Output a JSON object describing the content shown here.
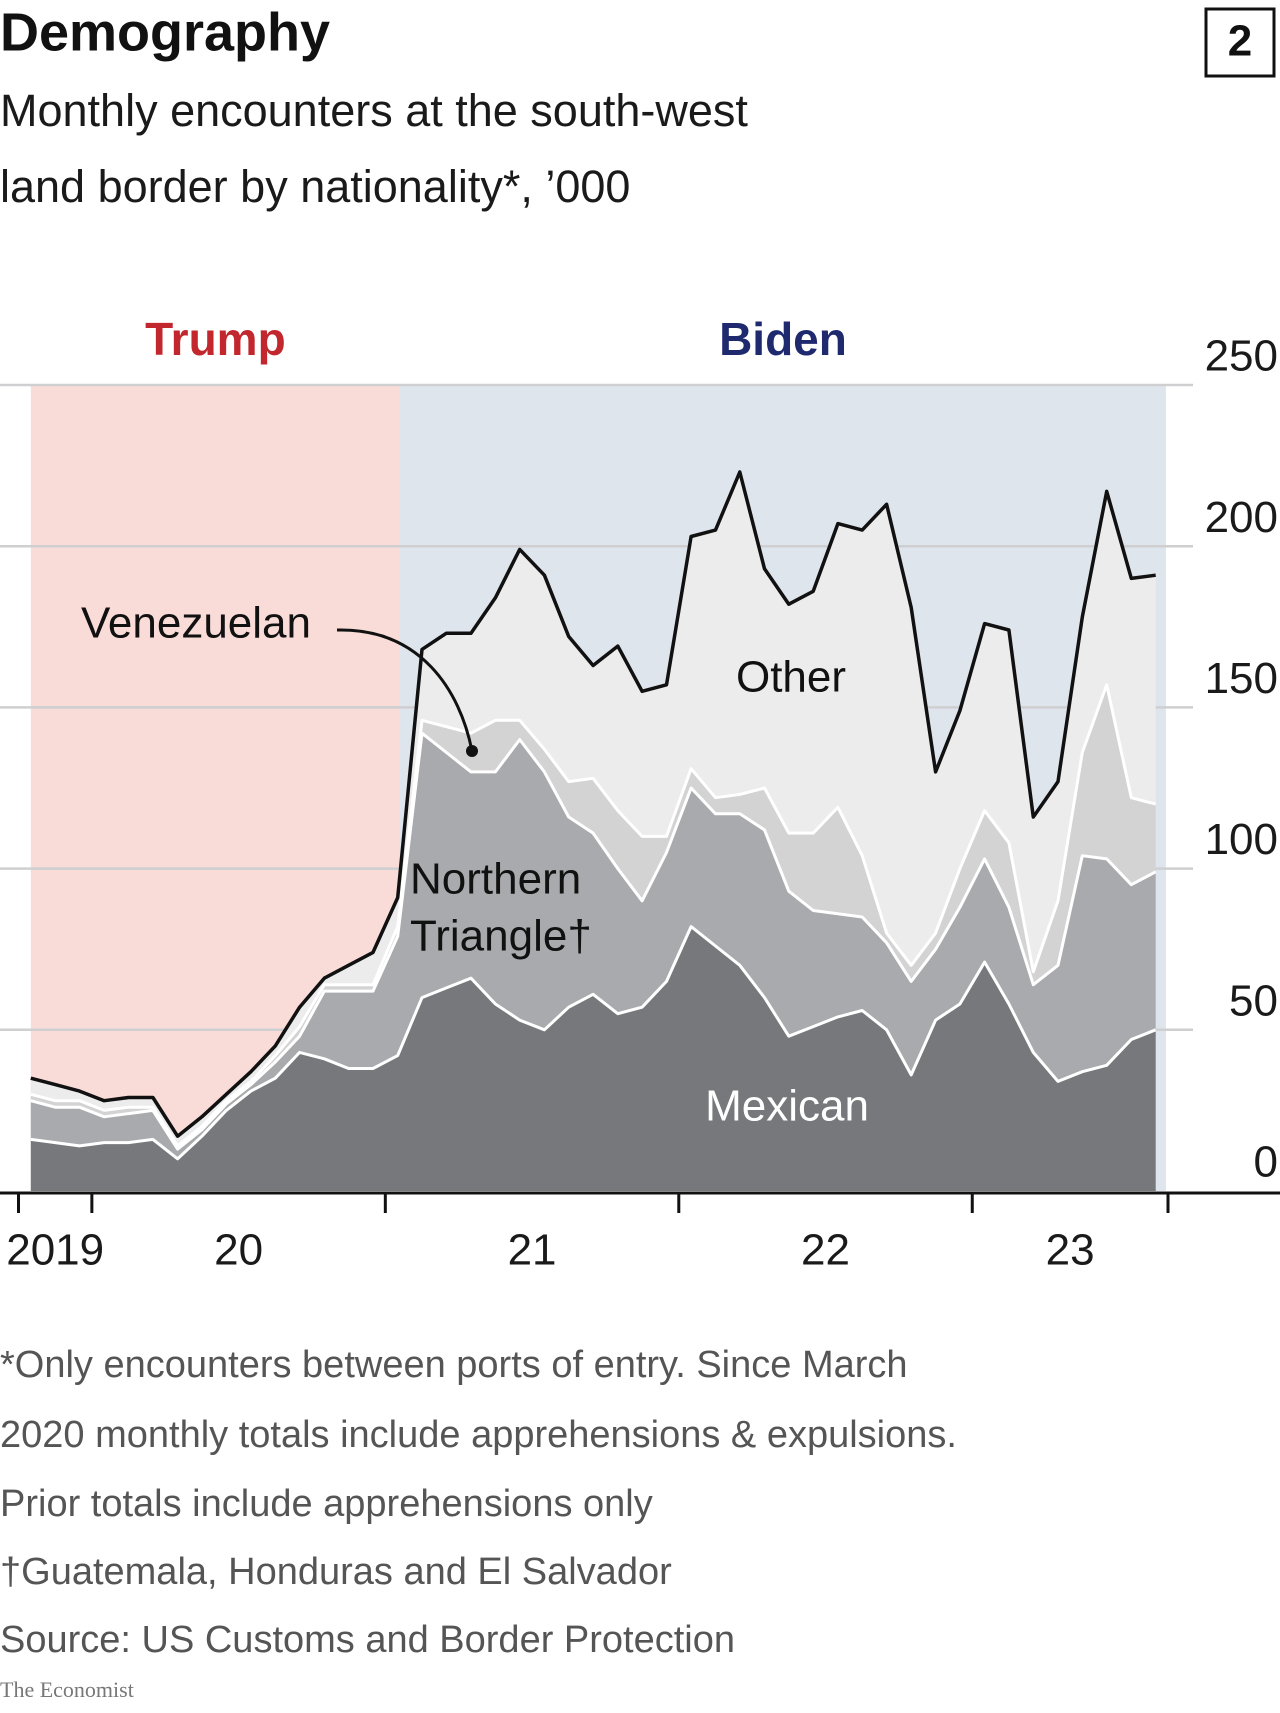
{
  "header": {
    "title": "Demography",
    "badge": "2"
  },
  "chart_data": {
    "type": "stacked_area",
    "subtitle": [
      "Monthly encounters at the south-west",
      "land border by nationality*, ’000"
    ],
    "periods": [
      {
        "name": "Trump",
        "start": 2019.792,
        "end": 2021.05,
        "color": "#f9dcd7",
        "label_color": "#c1272d"
      },
      {
        "name": "Biden",
        "start": 2021.05,
        "end": 2023.66,
        "color": "#dfe5ed",
        "label_color": "#1f2a6e"
      }
    ],
    "x": [
      2019.792,
      2019.875,
      2019.958,
      2020.042,
      2020.125,
      2020.208,
      2020.292,
      2020.375,
      2020.458,
      2020.542,
      2020.625,
      2020.708,
      2020.792,
      2020.875,
      2020.958,
      2021.042,
      2021.125,
      2021.208,
      2021.292,
      2021.375,
      2021.458,
      2021.542,
      2021.625,
      2021.708,
      2021.792,
      2021.875,
      2021.958,
      2022.042,
      2022.125,
      2022.208,
      2022.292,
      2022.375,
      2022.458,
      2022.542,
      2022.625,
      2022.708,
      2022.792,
      2022.875,
      2022.958,
      2023.042,
      2023.125,
      2023.208,
      2023.292,
      2023.375,
      2023.458,
      2023.542,
      2023.625
    ],
    "series": [
      {
        "name": "Mexican",
        "color": "#77787b",
        "edge_color": "#ffffff",
        "values": [
          16,
          15,
          14,
          15,
          15,
          16,
          10,
          17,
          25,
          31,
          35,
          43,
          41,
          38,
          38,
          42,
          60,
          63,
          66,
          58,
          53,
          50,
          57,
          61,
          55,
          57,
          65,
          82,
          76,
          70,
          60,
          48,
          51,
          54,
          56,
          50,
          36,
          53,
          58,
          71,
          58,
          43,
          34,
          37,
          39,
          47,
          50
        ]
      },
      {
        "name": "Northern Triangle",
        "color": "#a9aaad",
        "edge_color": "#ffffff",
        "values": [
          12,
          11,
          12,
          8,
          9,
          9,
          3,
          2,
          2,
          2,
          5,
          5,
          21,
          24,
          24,
          37,
          82,
          73,
          64,
          72,
          87,
          80,
          59,
          50,
          45,
          33,
          40,
          43,
          41,
          47,
          52,
          45,
          36,
          32,
          29,
          27,
          29,
          22,
          30,
          32,
          30,
          21,
          36,
          67,
          64,
          48,
          49
        ]
      },
      {
        "name": "Venezuelan",
        "color": "#d3d3d4",
        "edge_color": "#ffffff",
        "values": [
          2,
          2,
          2,
          2,
          2,
          1,
          1,
          1,
          1,
          1,
          2,
          3,
          2,
          2,
          2,
          3,
          4,
          8,
          12,
          16,
          6,
          7,
          11,
          17,
          18,
          20,
          5,
          6,
          5,
          6,
          13,
          18,
          24,
          33,
          19,
          3,
          5,
          5,
          12,
          15,
          20,
          4,
          20,
          32,
          54,
          27,
          21
        ]
      },
      {
        "name": "Other",
        "color": "#ececec",
        "edge_color": "#111111",
        "values": [
          5,
          5,
          3,
          3,
          3,
          3,
          3,
          3,
          2,
          3,
          3,
          6,
          2,
          6,
          10,
          9,
          22,
          29,
          31,
          38,
          53,
          54,
          45,
          35,
          51,
          45,
          47,
          72,
          83,
          100,
          68,
          71,
          75,
          88,
          101,
          133,
          111,
          50,
          49,
          58,
          66,
          48,
          37,
          42,
          60,
          68,
          71
        ]
      }
    ],
    "xlim": [
      2019.75,
      2023.667
    ],
    "xticks": [
      2019.75,
      2020,
      2021,
      2022,
      2023,
      2023.667
    ],
    "x_labels": [
      "2019",
      "20",
      "21",
      "22",
      "23"
    ],
    "ylim": [
      0,
      250
    ],
    "yticks": [
      0,
      50,
      100,
      150,
      200,
      250
    ],
    "grid": true,
    "annotations": [
      {
        "lines": [
          "Venezuelan"
        ],
        "color": "#111111"
      },
      {
        "lines": [
          "Other"
        ],
        "color": "#111111"
      },
      {
        "lines": [
          "Northern",
          "Triangle†"
        ],
        "color": "#111111"
      },
      {
        "lines": [
          "Mexican"
        ],
        "color": "#ffffff"
      }
    ]
  },
  "footnotes": [
    "*Only encounters between ports of entry. Since March",
    "2020 monthly totals include apprehensions & expulsions.",
    "Prior totals include apprehensions only",
    "†Guatemala, Honduras and El Salvador",
    "Source: US Customs and Border Protection"
  ],
  "brand": "The Economist"
}
